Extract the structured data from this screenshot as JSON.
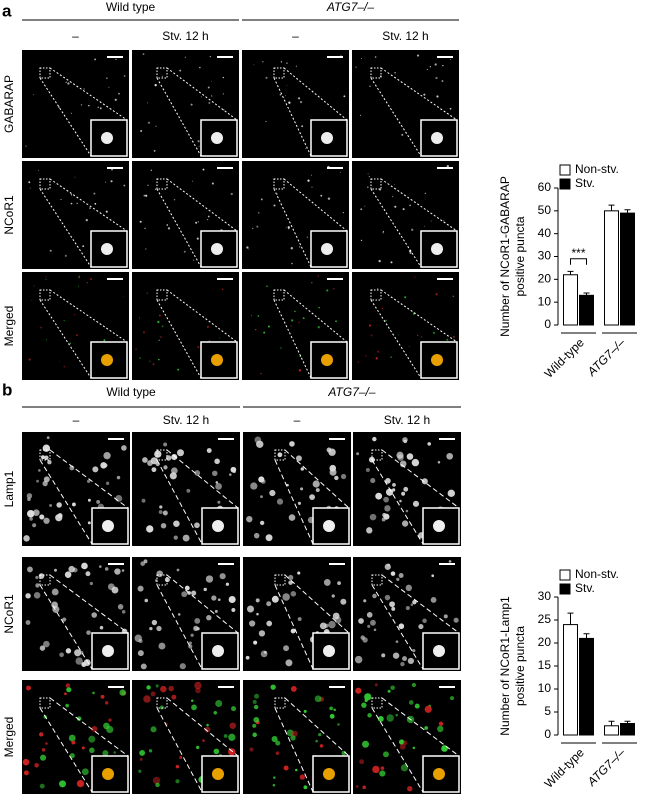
{
  "panel_a": {
    "letter": "a",
    "groups": [
      "Wild type",
      "ATG7–/–"
    ],
    "conditions": [
      "–",
      "Stv. 12 h",
      "–",
      "Stv. 12 h"
    ],
    "rows": [
      "GABARAP",
      "NCoR1",
      "Merged"
    ]
  },
  "panel_b": {
    "letter": "b",
    "groups": [
      "Wild type",
      "ATG7–/–"
    ],
    "conditions": [
      "–",
      "Stv. 12 h",
      "–",
      "Stv. 12 h"
    ],
    "rows": [
      "Lamp1",
      "NCoR1",
      "Merged"
    ]
  },
  "chart_data": [
    {
      "type": "bar",
      "y_label": [
        "Number of NCoR1-GABARAP",
        "positive puncta"
      ],
      "categories": [
        "Wild-type",
        "ATG7–/–"
      ],
      "series": [
        {
          "name": "Non-stv.",
          "color": "#ffffff",
          "values": [
            22,
            50
          ],
          "errors": [
            1.5,
            2.5
          ]
        },
        {
          "name": "Stv.",
          "color": "#000000",
          "values": [
            13,
            49
          ],
          "errors": [
            1,
            1.5
          ]
        }
      ],
      "ylim": [
        0,
        60
      ],
      "yticks": [
        0,
        10,
        20,
        30,
        40,
        50,
        60
      ],
      "annotation": "***"
    },
    {
      "type": "bar",
      "y_label": [
        "Number of NCoR1-Lamp1",
        "positive puncta"
      ],
      "categories": [
        "Wild-type",
        "ATG7–/–"
      ],
      "series": [
        {
          "name": "Non-stv.",
          "color": "#ffffff",
          "values": [
            24,
            2
          ],
          "errors": [
            2.5,
            1
          ]
        },
        {
          "name": "Stv.",
          "color": "#000000",
          "values": [
            21,
            2.5
          ],
          "errors": [
            1,
            0.5
          ]
        }
      ],
      "ylim": [
        0,
        30
      ],
      "yticks": [
        0,
        5,
        10,
        15,
        20,
        25,
        30
      ]
    }
  ]
}
